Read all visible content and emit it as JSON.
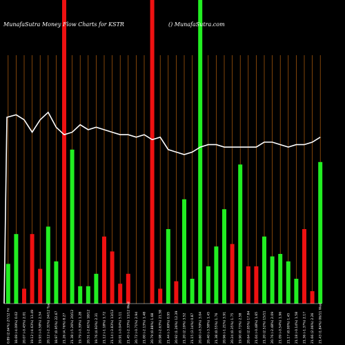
{
  "title_left": "MunafaSutra  Money Flow  Charts for KSTR",
  "title_right": "() MunafaSutra.com",
  "colors": {
    "background": "#000000",
    "grid": "#b8620e",
    "up": "#22ee22",
    "down": "#ee1111",
    "line": "#ffffff",
    "axis": "#ffffff"
  },
  "chart_data": {
    "type": "bar",
    "grid": true,
    "ylim": [
      0,
      100
    ],
    "categories": [
      "03 Fri Jan 2025",
      "02 Thu Jan 2025",
      "31 Tue Dec 2024",
      "30 Mon Dec 2024",
      "27 Fri Dec 2024",
      "26 Thu Dec 2024",
      "24 Tue Dec 2024",
      "23 Mon Dec 2024",
      "20 Fri Dec 2024",
      "19 Thu Dec 2024",
      "18 Wed Dec 2024",
      "17 Tue Dec 2024",
      "16 Mon Dec 2024",
      "13 Fri Dec 2024",
      "12 Thu Dec 2024",
      "11 Wed Dec 2024",
      "10 Tue Dec 2024",
      "09 Mon Dec 2024",
      "06 Fri Dec 2024",
      "05 Thu Dec 2024",
      "04 Wed Dec 2024",
      "03 Tue Dec 2024",
      "02 Mon Dec 2024",
      "29 Fri Nov 2024",
      "27 Wed Nov 2024",
      "26 Tue Nov 2024",
      "25 Mon Nov 2024",
      "22 Fri Nov 2024",
      "21 Thu Nov 2024",
      "20 Wed Nov 2024",
      "19 Tue Nov 2024",
      "18 Mon Nov 2024",
      "15 Fri Nov 2024",
      "14 Thu Nov 2024",
      "13 Wed Nov 2024",
      "12 Tue Nov 2024",
      "11 Mon Nov 2024",
      "08 Fri Nov 2024",
      "07 Thu Nov 2024",
      "06 Wed Nov 2024"
    ],
    "tick_labels": [
      "0.89 (2.64%) 27/12 Fri",
      "18.69 (-4.09%) 0.02",
      "20.07 (-0.45%) 2.01",
      "19.12 (-4.63%) 13.49",
      "19.93 (-0.58%) 2.54",
      "20.12 (-2.31%) 24/12 Tue",
      "18.97 (0.95%) 22.67",
      "21.26 (4.76%) 8.27",
      "21.38 (-5.26%) 20/12",
      "19.79 (-0.39%) 1.28",
      "20.51 (-2.61%) 18/12",
      "19.76 (4.93%) 2.31",
      "21.12 (-1.18%) 1.72",
      "21.14 (-3.83%) 13/12",
      "20.91 (-0.04%) 5.11",
      "21.45 (-2.33%) 11/12 Wed",
      "20.72 (-0.71%) 2.94",
      "21.00 (-2.13%) 1.48",
      "20.79 (0.88%) 1.68",
      "20.98 (-2.63%) 21.58",
      "21.44 (-3.69%) 0.95",
      "20.92 (1.26%) 12.39",
      "21.20 (2.19%) 3.52",
      "21.15 (3.14%) 0.87",
      "20.60 (-0.59%) 3.04",
      "20.40 (-3.58%) 1.45",
      "21.38 (0.55%) 1.76",
      "20.96 (-1.21%) 3.91",
      "20.24 (0.35%) 1.75",
      "19.90 (0.73%) 2.58",
      "20.64 (2.05%) 17.84",
      "21.04 (-0.48%) 1.65",
      "21.20 (2.52%) 15/11",
      "20.76 (-2.48%) 2.09",
      "21.09 (-0.54%) 1.96",
      "21.17 (0.00%) 1.45",
      "21.18 (-0.14%) 1.58",
      "21.36 (-1.37%) 2.17",
      "21.66 (2.06%) 2.26",
      "21.43 (1.84%) 06/11 Wed"
    ],
    "series": [
      {
        "direction": [
          "up",
          "up",
          "down",
          "down",
          "down",
          "up",
          "up",
          "down",
          "up",
          "up",
          "up",
          "up",
          "down",
          "down",
          "down",
          "down",
          "down",
          "up",
          "down",
          "down",
          "up",
          "down",
          "up",
          "up",
          "up",
          "up",
          "up",
          "up",
          "down",
          "up",
          "down",
          "down",
          "up",
          "up",
          "up",
          "up",
          "up",
          "down",
          "down",
          "up"
        ],
        "values": [
          16,
          28,
          6,
          28,
          14,
          31,
          17,
          100,
          62,
          7,
          7,
          12,
          27,
          21,
          8,
          12,
          0,
          0,
          100,
          6,
          30,
          9,
          42,
          10,
          100,
          15,
          23,
          38,
          24,
          56,
          15,
          15,
          27,
          19,
          20,
          17,
          10,
          30,
          5,
          57
        ]
      },
      {
        "name": "",
        "type": "line",
        "values": [
          75,
          76,
          74,
          69,
          74,
          77,
          71,
          68,
          69,
          72,
          70,
          71,
          70,
          69,
          68,
          68,
          67,
          68,
          66,
          67,
          62,
          61,
          60,
          61,
          63,
          64,
          64,
          63,
          63,
          63,
          63,
          63,
          65,
          65,
          64,
          63,
          64,
          64,
          65,
          67
        ]
      }
    ]
  }
}
